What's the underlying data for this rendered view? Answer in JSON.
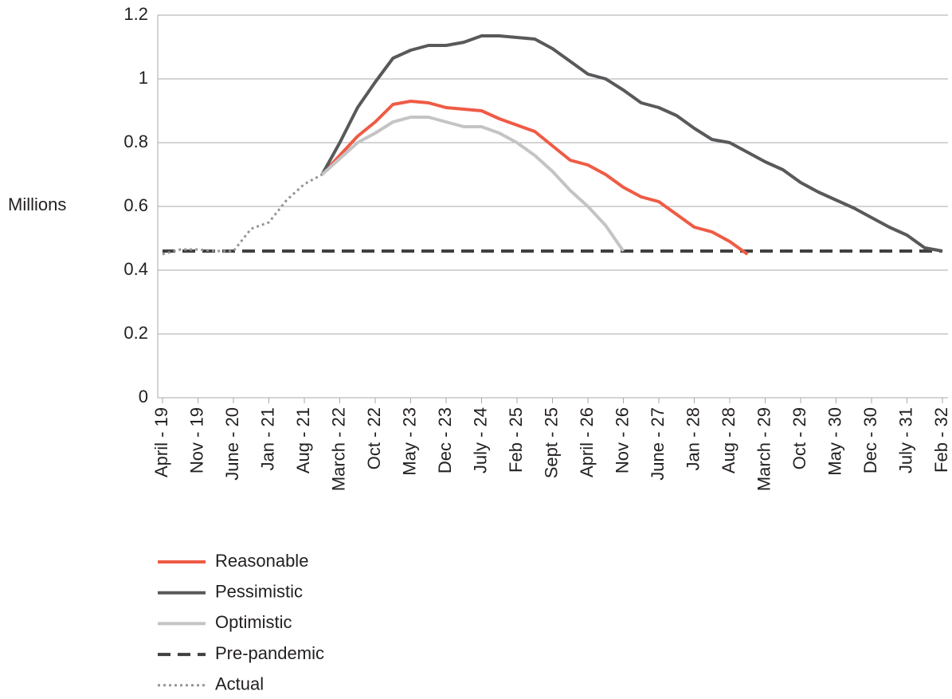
{
  "chart_data": {
    "type": "line",
    "y_label": "Millions",
    "categories": [
      "April - 19",
      null,
      "Nov - 19",
      null,
      "June - 20",
      null,
      "Jan - 21",
      null,
      "Aug - 21",
      null,
      "March - 22",
      null,
      "Oct - 22",
      null,
      "May - 23",
      null,
      "Dec - 23",
      null,
      "July - 24",
      null,
      "Feb - 25",
      null,
      "Sept - 25",
      null,
      "April - 26",
      null,
      "Nov - 26",
      null,
      "June - 27",
      null,
      "Jan - 28",
      null,
      "Aug - 28",
      null,
      "March - 29",
      null,
      "Oct - 29",
      null,
      "May - 30",
      null,
      "Dec - 30",
      null,
      "July - 31",
      null,
      "Feb - 32"
    ],
    "series": [
      {
        "name": "Reasonable",
        "color": "#ef5b45",
        "style": "solid",
        "values": [
          null,
          null,
          null,
          null,
          null,
          null,
          null,
          null,
          null,
          0.7,
          0.76,
          0.82,
          0.865,
          0.92,
          0.93,
          0.925,
          0.91,
          0.905,
          0.9,
          0.875,
          0.855,
          0.835,
          0.79,
          0.745,
          0.73,
          0.7,
          0.66,
          0.63,
          0.615,
          0.575,
          0.535,
          0.52,
          0.49,
          0.45,
          null,
          null,
          null,
          null,
          null,
          null,
          null,
          null,
          null,
          null,
          null
        ]
      },
      {
        "name": "Pessimistic",
        "color": "#58595b",
        "style": "solid",
        "values": [
          null,
          null,
          null,
          null,
          null,
          null,
          null,
          null,
          null,
          0.7,
          0.8,
          0.91,
          0.99,
          1.065,
          1.09,
          1.105,
          1.105,
          1.115,
          1.135,
          1.135,
          1.13,
          1.125,
          1.095,
          1.055,
          1.015,
          1.0,
          0.965,
          0.925,
          0.91,
          0.885,
          0.845,
          0.81,
          0.8,
          0.77,
          0.74,
          0.715,
          0.675,
          0.645,
          0.62,
          0.595,
          0.565,
          0.535,
          0.51,
          0.47,
          0.46
        ]
      },
      {
        "name": "Optimistic",
        "color": "#c4c4c6",
        "style": "solid",
        "values": [
          null,
          null,
          null,
          null,
          null,
          null,
          null,
          null,
          null,
          0.7,
          0.75,
          0.8,
          0.83,
          0.865,
          0.88,
          0.88,
          0.865,
          0.85,
          0.85,
          0.83,
          0.8,
          0.76,
          0.71,
          0.65,
          0.6,
          0.54,
          0.46,
          null,
          null,
          null,
          null,
          null,
          null,
          null,
          null,
          null,
          null,
          null,
          null,
          null,
          null,
          null,
          null,
          null,
          null
        ]
      },
      {
        "name": "Pre-pandemic",
        "color": "#404041",
        "style": "dashed",
        "values": [
          0.46,
          0.46,
          0.46,
          0.46,
          0.46,
          0.46,
          0.46,
          0.46,
          0.46,
          0.46,
          0.46,
          0.46,
          0.46,
          0.46,
          0.46,
          0.46,
          0.46,
          0.46,
          0.46,
          0.46,
          0.46,
          0.46,
          0.46,
          0.46,
          0.46,
          0.46,
          0.46,
          0.46,
          0.46,
          0.46,
          0.46,
          0.46,
          0.46,
          0.46,
          0.46,
          0.46,
          0.46,
          0.46,
          0.46,
          0.46,
          0.46,
          0.46,
          0.46,
          0.46,
          0.46
        ]
      },
      {
        "name": "Actual",
        "color": "#939598",
        "style": "dotted",
        "values": [
          0.45,
          0.465,
          0.465,
          0.46,
          0.46,
          0.53,
          0.55,
          0.62,
          0.67,
          0.7,
          null,
          null,
          null,
          null,
          null,
          null,
          null,
          null,
          null,
          null,
          null,
          null,
          null,
          null,
          null,
          null,
          null,
          null,
          null,
          null,
          null,
          null,
          null,
          null,
          null,
          null,
          null,
          null,
          null,
          null,
          null,
          null,
          null,
          null,
          null
        ]
      }
    ],
    "ylim": [
      0,
      1.2
    ],
    "yticks": [
      0,
      0.2,
      0.4,
      0.6,
      0.8,
      1,
      1.2
    ],
    "grid": true
  }
}
